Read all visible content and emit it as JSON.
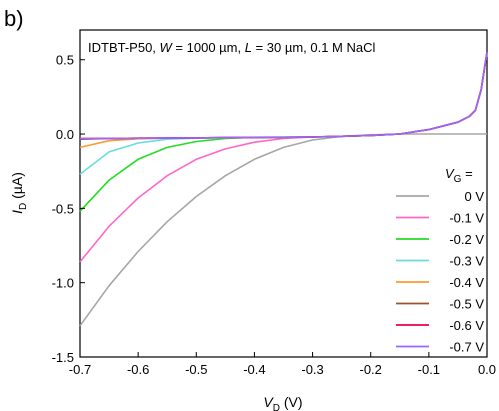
{
  "panel_label": "b)",
  "chart_data": {
    "type": "line",
    "title_parts": [
      "IDTBT-P50, ",
      "W",
      " = 1000 µm, ",
      "L",
      " = 30 µm, 0.1 M NaCl"
    ],
    "xlabel": {
      "main": "V",
      "sub": "D",
      "unit": " (V)"
    },
    "ylabel": {
      "main": "I",
      "sub": "D",
      "unit": " (µA)"
    },
    "xlim": [
      -0.7,
      0.0
    ],
    "ylim": [
      -1.5,
      0.7
    ],
    "xticks": [
      -0.7,
      -0.6,
      -0.5,
      -0.4,
      -0.3,
      -0.2,
      -0.1,
      0.0
    ],
    "xtick_labels": [
      "-0.7",
      "-0.6",
      "-0.5",
      "-0.4",
      "-0.3",
      "-0.2",
      "-0.1",
      "0.0"
    ],
    "yticks": [
      -1.5,
      -1.0,
      -0.5,
      0.0,
      0.5
    ],
    "ytick_labels": [
      "-1.5",
      "-1.0",
      "-0.5",
      "0.0",
      "0.5"
    ],
    "grid": false,
    "legend": {
      "position": "right",
      "title_main": "V",
      "title_sub": "G",
      "title_suffix": " ="
    },
    "x": [
      -0.7,
      -0.65,
      -0.6,
      -0.55,
      -0.5,
      -0.45,
      -0.4,
      -0.35,
      -0.3,
      -0.25,
      -0.2,
      -0.15,
      -0.1,
      -0.05,
      -0.03,
      -0.02,
      -0.01,
      0.0
    ],
    "series": [
      {
        "name": "0 V",
        "color": "#a6a6a6",
        "values": [
          -1.29,
          -1.02,
          -0.79,
          -0.59,
          -0.42,
          -0.28,
          -0.17,
          -0.09,
          -0.04,
          -0.015,
          -0.005,
          0.0,
          0.0,
          0.0,
          0.0,
          0.0,
          0.0,
          0.0
        ]
      },
      {
        "name": "-0.1 V",
        "color": "#ff66cc",
        "values": [
          -0.86,
          -0.62,
          -0.43,
          -0.28,
          -0.17,
          -0.1,
          -0.055,
          -0.03,
          -0.02,
          -0.015,
          -0.01,
          0.0,
          0.03,
          0.08,
          0.12,
          0.16,
          0.3,
          0.55
        ]
      },
      {
        "name": "-0.2 V",
        "color": "#22dd22",
        "values": [
          -0.52,
          -0.31,
          -0.17,
          -0.09,
          -0.05,
          -0.03,
          -0.022,
          -0.02,
          -0.02,
          -0.015,
          -0.01,
          0.0,
          0.03,
          0.08,
          0.12,
          0.16,
          0.3,
          0.55
        ]
      },
      {
        "name": "-0.3 V",
        "color": "#66dddd",
        "values": [
          -0.27,
          -0.12,
          -0.06,
          -0.035,
          -0.028,
          -0.025,
          -0.023,
          -0.022,
          -0.02,
          -0.015,
          -0.01,
          0.0,
          0.03,
          0.08,
          0.12,
          0.16,
          0.3,
          0.55
        ]
      },
      {
        "name": "-0.4 V",
        "color": "#ff9933",
        "values": [
          -0.09,
          -0.045,
          -0.032,
          -0.028,
          -0.026,
          -0.024,
          -0.023,
          -0.022,
          -0.02,
          -0.015,
          -0.01,
          0.0,
          0.03,
          0.08,
          0.12,
          0.16,
          0.3,
          0.55
        ]
      },
      {
        "name": "-0.5 V",
        "color": "#a0522d",
        "values": [
          -0.035,
          -0.03,
          -0.028,
          -0.027,
          -0.026,
          -0.024,
          -0.023,
          -0.022,
          -0.02,
          -0.015,
          -0.01,
          0.0,
          0.03,
          0.08,
          0.12,
          0.16,
          0.3,
          0.55
        ]
      },
      {
        "name": "-0.6 V",
        "color": "#e8004a",
        "values": [
          -0.03,
          -0.029,
          -0.028,
          -0.027,
          -0.026,
          -0.024,
          -0.023,
          -0.022,
          -0.02,
          -0.015,
          -0.01,
          0.0,
          0.03,
          0.08,
          0.12,
          0.16,
          0.3,
          0.55
        ]
      },
      {
        "name": "-0.7 V",
        "color": "#9966ff",
        "values": [
          -0.03,
          -0.029,
          -0.028,
          -0.027,
          -0.026,
          -0.024,
          -0.023,
          -0.022,
          -0.02,
          -0.015,
          -0.01,
          0.0,
          0.03,
          0.08,
          0.12,
          0.16,
          0.3,
          0.55
        ]
      }
    ]
  }
}
